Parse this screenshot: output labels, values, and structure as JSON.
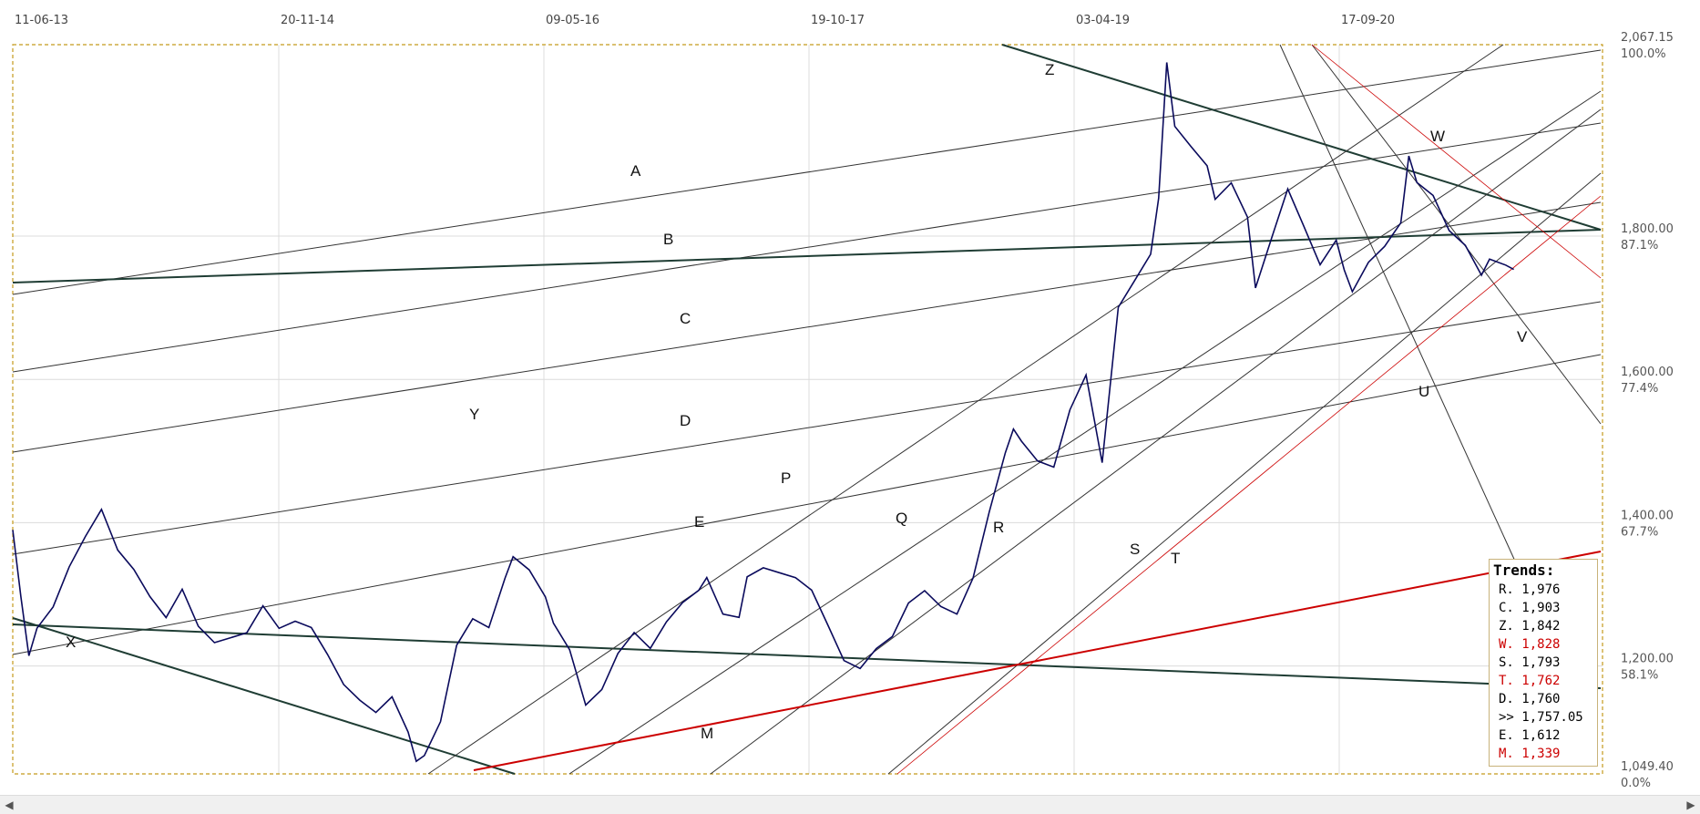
{
  "chart_data": {
    "type": "line",
    "title": "",
    "xlabel": "",
    "ylabel": "",
    "x_tick_labels": [
      "11-06-13",
      "20-11-14",
      "09-05-16",
      "19-10-17",
      "03-04-19",
      "17-09-20"
    ],
    "y_ticks": [
      {
        "price": "2,067.15",
        "pct": "100.0%"
      },
      {
        "price": "1,800.00",
        "pct": "87.1%"
      },
      {
        "price": "1,600.00",
        "pct": "77.4%"
      },
      {
        "price": "1,400.00",
        "pct": "67.7%"
      },
      {
        "price": "1,200.00",
        "pct": "58.1%"
      },
      {
        "price": "1,049.40",
        "pct": "0.0%"
      }
    ],
    "ylim": [
      1049.4,
      2067.15
    ],
    "grid": true,
    "series": [
      {
        "values": [
          [
            2013.45,
            1390
          ],
          [
            2013.5,
            1300
          ],
          [
            2013.55,
            1220
          ],
          [
            2013.6,
            1260
          ],
          [
            2013.7,
            1290
          ],
          [
            2013.8,
            1345
          ],
          [
            2013.9,
            1385
          ],
          [
            2014.0,
            1420
          ],
          [
            2014.1,
            1360
          ],
          [
            2014.2,
            1330
          ],
          [
            2014.3,
            1290
          ],
          [
            2014.4,
            1260
          ],
          [
            2014.5,
            1300
          ],
          [
            2014.6,
            1250
          ],
          [
            2014.7,
            1230
          ],
          [
            2014.8,
            1240
          ],
          [
            2014.9,
            1250
          ],
          [
            2015.0,
            1290
          ],
          [
            2015.1,
            1260
          ],
          [
            2015.2,
            1270
          ],
          [
            2015.3,
            1260
          ],
          [
            2015.4,
            1220
          ],
          [
            2015.5,
            1175
          ],
          [
            2015.6,
            1150
          ],
          [
            2015.7,
            1130
          ],
          [
            2015.8,
            1150
          ],
          [
            2015.9,
            1100
          ],
          [
            2015.95,
            1060
          ],
          [
            2016.0,
            1070
          ],
          [
            2016.1,
            1120
          ],
          [
            2016.2,
            1230
          ],
          [
            2016.3,
            1270
          ],
          [
            2016.4,
            1260
          ],
          [
            2016.5,
            1330
          ],
          [
            2016.55,
            1360
          ],
          [
            2016.65,
            1340
          ],
          [
            2016.75,
            1300
          ],
          [
            2016.8,
            1260
          ],
          [
            2016.9,
            1220
          ],
          [
            2017.0,
            1140
          ],
          [
            2017.1,
            1160
          ],
          [
            2017.2,
            1210
          ],
          [
            2017.3,
            1240
          ],
          [
            2017.4,
            1220
          ],
          [
            2017.5,
            1260
          ],
          [
            2017.6,
            1290
          ],
          [
            2017.7,
            1310
          ],
          [
            2017.75,
            1330
          ],
          [
            2017.85,
            1280
          ],
          [
            2017.95,
            1275
          ],
          [
            2018.0,
            1330
          ],
          [
            2018.1,
            1340
          ],
          [
            2018.2,
            1330
          ],
          [
            2018.3,
            1320
          ],
          [
            2018.4,
            1300
          ],
          [
            2018.5,
            1250
          ],
          [
            2018.6,
            1200
          ],
          [
            2018.7,
            1190
          ],
          [
            2018.8,
            1220
          ],
          [
            2018.9,
            1240
          ],
          [
            2019.0,
            1290
          ],
          [
            2019.1,
            1310
          ],
          [
            2019.2,
            1290
          ],
          [
            2019.3,
            1280
          ],
          [
            2019.4,
            1330
          ],
          [
            2019.5,
            1420
          ],
          [
            2019.6,
            1500
          ],
          [
            2019.65,
            1530
          ],
          [
            2019.7,
            1510
          ],
          [
            2019.8,
            1480
          ],
          [
            2019.9,
            1470
          ],
          [
            2020.0,
            1550
          ],
          [
            2020.1,
            1600
          ],
          [
            2020.2,
            1480
          ],
          [
            2020.3,
            1700
          ],
          [
            2020.4,
            1740
          ],
          [
            2020.5,
            1780
          ],
          [
            2020.55,
            1860
          ],
          [
            2020.6,
            2050
          ],
          [
            2020.65,
            1960
          ],
          [
            2020.75,
            1930
          ],
          [
            2020.85,
            1900
          ],
          [
            2020.9,
            1850
          ],
          [
            2021.0,
            1870
          ],
          [
            2021.1,
            1820
          ],
          [
            2021.15,
            1720
          ],
          [
            2021.25,
            1790
          ],
          [
            2021.35,
            1860
          ],
          [
            2021.45,
            1810
          ],
          [
            2021.55,
            1760
          ],
          [
            2021.6,
            1780
          ],
          [
            2021.65,
            1800
          ],
          [
            2021.7,
            1760
          ],
          [
            2021.75,
            1730
          ],
          [
            2021.85,
            1770
          ],
          [
            2021.95,
            1790
          ],
          [
            2022.05,
            1820
          ],
          [
            2022.1,
            1910
          ],
          [
            2022.15,
            1870
          ],
          [
            2022.25,
            1850
          ],
          [
            2022.35,
            1800
          ],
          [
            2022.45,
            1780
          ],
          [
            2022.55,
            1740
          ],
          [
            2022.6,
            1765
          ],
          [
            2022.7,
            1760
          ],
          [
            2022.75,
            1757
          ]
        ]
      }
    ],
    "trend_labels": [
      "A",
      "B",
      "C",
      "D",
      "E",
      "P",
      "Q",
      "R",
      "S",
      "T",
      "U",
      "V",
      "W",
      "X",
      "Y",
      "Z",
      "M"
    ],
    "trends": {
      "title": "Trends:",
      "rows": [
        {
          "text": "R. 1,976",
          "color": "#000000"
        },
        {
          "text": "C. 1,903",
          "color": "#000000"
        },
        {
          "text": "Z. 1,842",
          "color": "#000000"
        },
        {
          "text": "W. 1,828",
          "color": "#cc0000"
        },
        {
          "text": "S. 1,793",
          "color": "#000000"
        },
        {
          "text": "T. 1,762",
          "color": "#cc0000"
        },
        {
          "text": "D. 1,760",
          "color": "#000000"
        },
        {
          "text": ">> 1,757.05",
          "color": "#000000"
        },
        {
          "text": "E. 1,612",
          "color": "#000000"
        },
        {
          "text": "M. 1,339",
          "color": "#cc0000"
        }
      ]
    }
  },
  "scrollbar": {
    "left_arrow": "◀",
    "right_arrow": "▶"
  }
}
